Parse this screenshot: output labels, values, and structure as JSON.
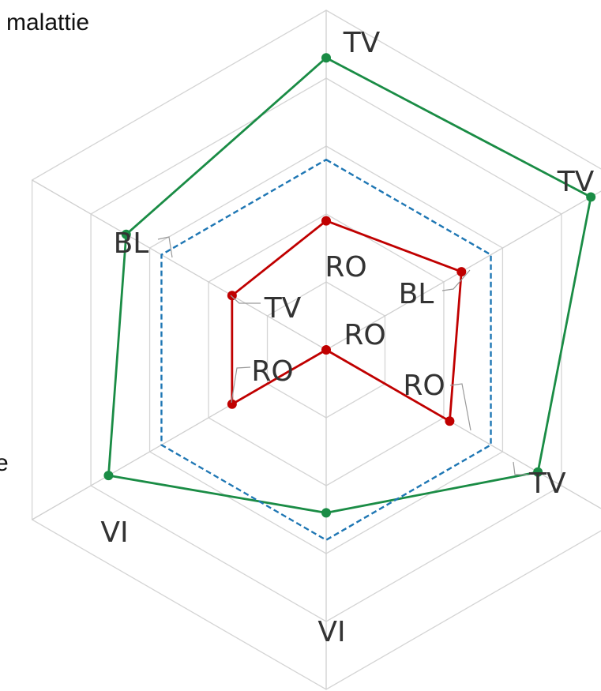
{
  "title_fragment": "malattie",
  "cut_label": "e",
  "chart_data": {
    "type": "radar",
    "axes_count": 6,
    "rmax": 5,
    "grid_levels": [
      1,
      2,
      3,
      4,
      5
    ],
    "grid": true,
    "series": [
      {
        "color": "#1a8c45",
        "style": "solid",
        "values": [
          4.3,
          4.5,
          3.6,
          2.4,
          3.7,
          3.4
        ]
      },
      {
        "color": "#1f77b4",
        "style": "dashed",
        "values": [
          2.8,
          2.8,
          2.8,
          2.8,
          2.8,
          2.8
        ]
      },
      {
        "color": "#c00000",
        "style": "solid",
        "values": [
          1.9,
          2.3,
          2.1,
          0,
          1.6,
          1.6
        ]
      }
    ],
    "data_labels": [
      {
        "text": "TV",
        "series": 0,
        "point": 0
      },
      {
        "text": "TV",
        "series": 0,
        "point": 1
      },
      {
        "text": "TV",
        "series": 0,
        "point": 2
      },
      {
        "text": "VI",
        "series": 0,
        "point": 3
      },
      {
        "text": "VI",
        "series": 0,
        "point": 4
      },
      {
        "text": "BL",
        "series": 0,
        "point": 5
      },
      {
        "text": "RO",
        "series": 2,
        "point": 0
      },
      {
        "text": "BL",
        "series": 2,
        "point": 1
      },
      {
        "text": "RO",
        "series": 2,
        "point": 2
      },
      {
        "text": "RO",
        "series": 2,
        "point": 3
      },
      {
        "text": "RO",
        "series": 2,
        "point": 4
      },
      {
        "text": "TV",
        "series": 2,
        "point": 5
      }
    ]
  }
}
